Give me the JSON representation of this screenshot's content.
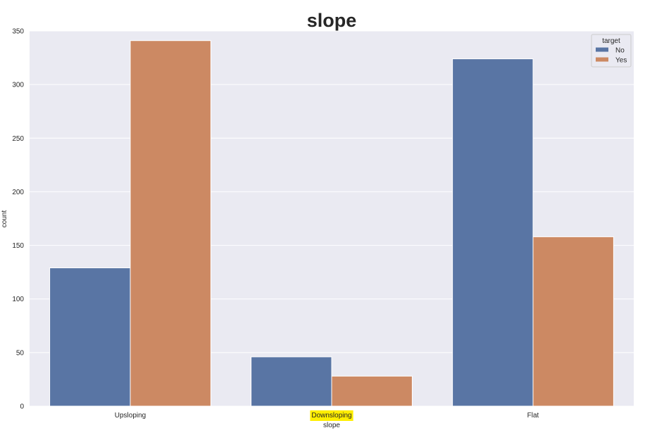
{
  "chart_data": {
    "type": "bar",
    "title": "slope",
    "xlabel": "slope",
    "ylabel": "count",
    "categories": [
      "Upsloping",
      "Downsloping",
      "Flat"
    ],
    "highlighted_category": "Downsloping",
    "highlight_color": "#ffee00",
    "series": [
      {
        "name": "No",
        "values": [
          129,
          46,
          324
        ],
        "color": "#5975a4"
      },
      {
        "name": "Yes",
        "values": [
          341,
          28,
          158
        ],
        "color": "#cc8963"
      }
    ],
    "ylim": [
      0,
      350
    ],
    "yticks": [
      0,
      50,
      100,
      150,
      200,
      250,
      300,
      350
    ],
    "grid": true,
    "background": "#eaeaf2",
    "legend": {
      "title": "target",
      "placement": "top-right"
    }
  }
}
